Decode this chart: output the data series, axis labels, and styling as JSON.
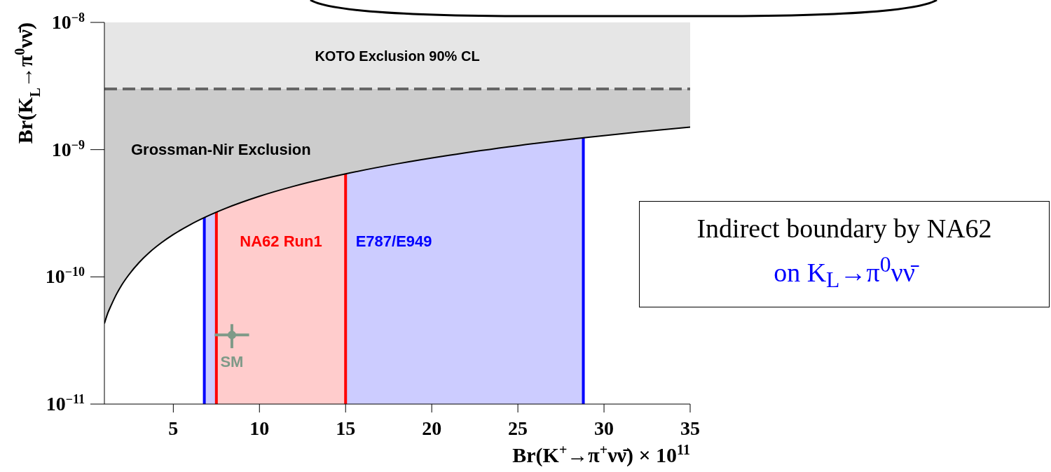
{
  "chart_data": {
    "type": "line",
    "xlabel": "Br(K$^{+}$→π$^{+}$νν̄) × 10$^{11}$",
    "ylabel": "Br(K$_{L}$→π$^{0}$νν̄)",
    "xlim": [
      1,
      35
    ],
    "xticks": [
      5,
      10,
      15,
      20,
      25,
      30,
      35
    ],
    "ylim": [
      1e-11,
      1e-08
    ],
    "yticks": [
      {
        "value": 1e-11,
        "label": "10$^{−11}$"
      },
      {
        "value": 1e-10,
        "label": "10$^{−10}$"
      },
      {
        "value": 1e-09,
        "label": "10$^{−9}$"
      },
      {
        "value": 1e-08,
        "label": "10$^{−8}$"
      }
    ],
    "log": "y",
    "series": [
      {
        "name": "Grossman-Nir Exclusion",
        "color": "#000000",
        "x": [
          1,
          1.2,
          1.4,
          1.7,
          2,
          2.4,
          3,
          3.6,
          4.3,
          5,
          6,
          7,
          8,
          10,
          12,
          15,
          18,
          21,
          25,
          29,
          32,
          35
        ],
        "values": [
          4.3e-11,
          5.2e-11,
          6e-11,
          7.3e-11,
          8.6e-11,
          1.03e-10,
          1.29e-10,
          1.55e-10,
          1.85e-10,
          2.15e-10,
          2.58e-10,
          3.01e-10,
          3.44e-10,
          4.3e-10,
          5.16e-10,
          6.45e-10,
          7.74e-10,
          9.03e-10,
          1.075e-09,
          1.247e-09,
          1.376e-09,
          1.505e-09
        ],
        "lower": [
          4.3e-11,
          5.2e-11,
          6e-11,
          7.3e-11,
          8.6e-11,
          1.03e-10,
          1.29e-10,
          1.55e-10,
          1.85e-10,
          2.15e-10,
          2.58e-10,
          3.01e-10,
          3.44e-10,
          4.3e-10,
          5.16e-10,
          6.45e-10,
          7.74e-10,
          9.03e-10,
          1.075e-09,
          1.247e-09,
          1.376e-09,
          1.505e-09
        ],
        "upper": [
          3e-09,
          3e-09,
          3e-09,
          3e-09,
          3e-09,
          3e-09,
          3e-09,
          3e-09,
          3e-09,
          3e-09,
          3e-09,
          3e-09,
          3e-09,
          3e-09,
          3e-09,
          3e-09,
          3e-09,
          3e-09,
          3e-09,
          3e-09,
          3e-09,
          3e-09
        ]
      },
      {
        "type": "scatter",
        "name": "SM",
        "color": "#7f9a88",
        "x": [
          8.4
        ],
        "values": [
          3.5e-11
        ],
        "errors": [
          7.5e-12
        ],
        "xerrors": [
          1.0
        ]
      }
    ],
    "bands": [
      {
        "axis": "x",
        "from": 6.8,
        "to": 28.8,
        "label": "E787/E949",
        "color": "#ccccff"
      },
      {
        "axis": "x",
        "from": 7.5,
        "to": 15,
        "label": "NA62 Run1",
        "color": "#ffcccc"
      },
      {
        "axis": "y",
        "from": 3e-09,
        "to": 1e-08,
        "label": "KOTO Exclusion 90% CL",
        "color": "#e6e6e6"
      }
    ],
    "ref_lines": [
      {
        "axis": "x",
        "value": 6.8,
        "color": "#0000ff"
      },
      {
        "axis": "x",
        "value": 28.8,
        "color": "#0000ff"
      },
      {
        "axis": "x",
        "value": 7.5,
        "color": "#ff0000"
      },
      {
        "axis": "x",
        "value": 15,
        "color": "#ff0000"
      },
      {
        "axis": "y",
        "value": 3e-09,
        "color": "#666666",
        "line_style": "dashed"
      }
    ],
    "annotations": [
      "Indirect boundary by NA62",
      "on K$_{L}$→π$^{0}$νν̄"
    ]
  }
}
